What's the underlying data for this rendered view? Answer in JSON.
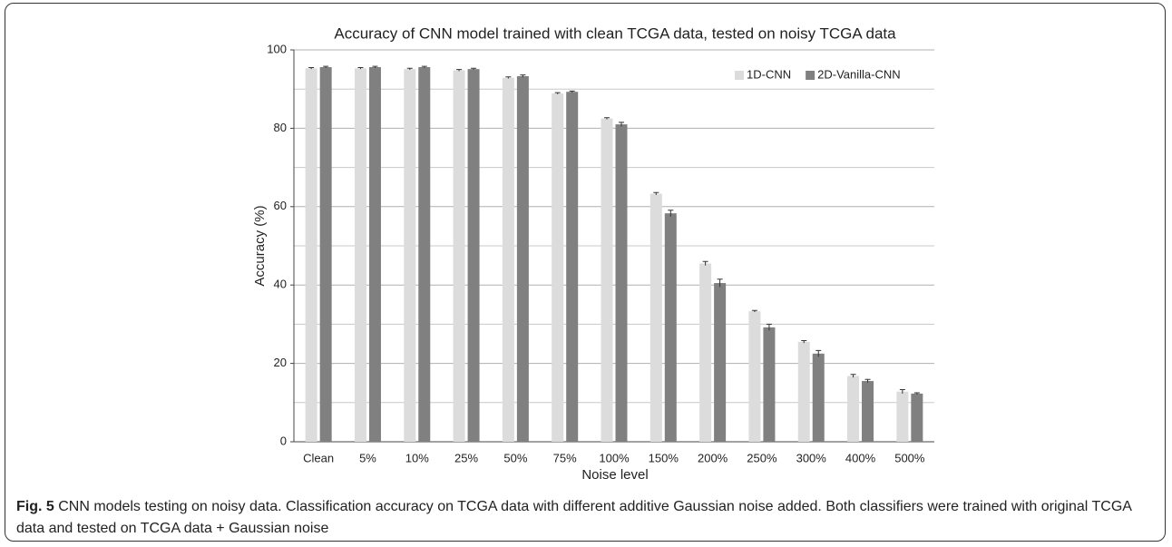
{
  "chart_data": {
    "type": "bar",
    "title": "Accuracy of CNN model trained with clean TCGA data, tested on noisy TCGA data",
    "x_label": "Noise level",
    "y_label": "Accuracy (%)",
    "categories": [
      "Clean",
      "5%",
      "10%",
      "25%",
      "50%",
      "75%",
      "100%",
      "150%",
      "200%",
      "250%",
      "300%",
      "400%",
      "500%"
    ],
    "series": [
      {
        "name": "1D-CNN",
        "color": "#dcdcdc",
        "values": [
          95.3,
          95.3,
          95.1,
          94.8,
          92.9,
          88.9,
          82.5,
          63.3,
          45.5,
          33.3,
          25.5,
          16.8,
          12.8
        ],
        "errors": [
          0.2,
          0.2,
          0.2,
          0.2,
          0.2,
          0.2,
          0.2,
          0.3,
          0.5,
          0.2,
          0.3,
          0.4,
          0.5
        ]
      },
      {
        "name": "2D-Vanilla-CNN",
        "color": "#808080",
        "values": [
          95.6,
          95.6,
          95.6,
          95.1,
          93.3,
          89.3,
          81,
          58.3,
          40.5,
          29.2,
          22.5,
          15.5,
          12.3
        ],
        "errors": [
          0.2,
          0.2,
          0.2,
          0.2,
          0.3,
          0.2,
          0.5,
          0.8,
          1.0,
          0.8,
          0.8,
          0.4,
          0.2
        ]
      }
    ],
    "ylim": [
      0,
      100
    ],
    "yticks": [
      0,
      20,
      40,
      60,
      80,
      100
    ],
    "minor_yticks": [
      10,
      30,
      50,
      70,
      90
    ],
    "grid": true,
    "legend": "top-right"
  },
  "caption": {
    "label": "Fig. 5",
    "text": "CNN models testing on noisy data. Classification accuracy on TCGA data with different additive Gaussian noise added. Both classifiers were trained with original TCGA data and tested on TCGA data + Gaussian noise"
  }
}
